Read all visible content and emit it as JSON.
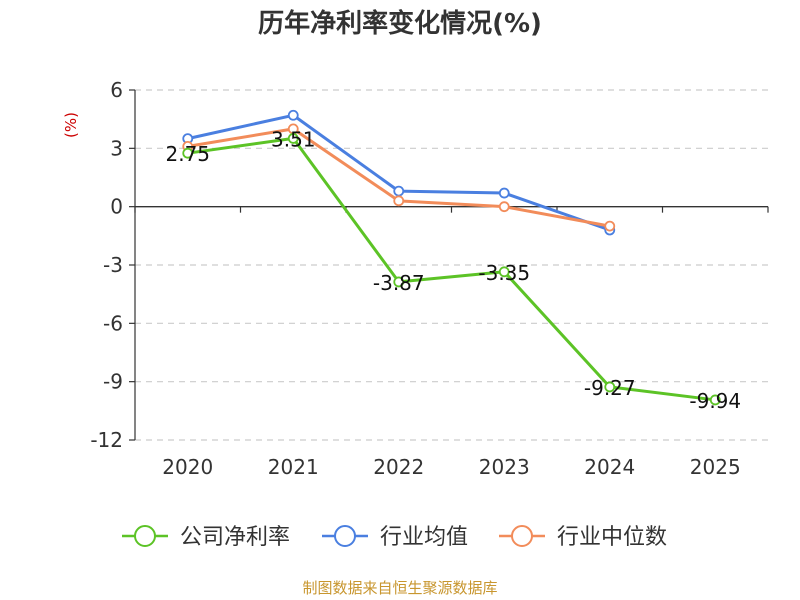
{
  "colors": {
    "company": "#5cc326",
    "industry_avg": "#4a7fe0",
    "industry_median": "#f28c5a",
    "ylabel": "#cc0000",
    "source": "#c8962e",
    "grid": "#cccccc",
    "axis": "#333333"
  },
  "chart_data": {
    "type": "line",
    "title": "历年净利率变化情况(%)",
    "ylabel": "(%)",
    "xlabel": "",
    "categories": [
      "2020",
      "2021",
      "2022",
      "2023",
      "2024",
      "2025"
    ],
    "ylim": [
      -12,
      6
    ],
    "yticks": [
      6,
      3,
      0,
      -3,
      -6,
      -9,
      -12
    ],
    "ytick_labels": [
      "6",
      "3",
      "0",
      "-3",
      "-6",
      "-9",
      "-12"
    ],
    "grid": "horizontal-dashed",
    "legend_position": "bottom",
    "series": [
      {
        "key": "company",
        "name": "公司净利率",
        "values": [
          2.75,
          3.51,
          -3.87,
          -3.35,
          -9.27,
          -9.94
        ],
        "labels": [
          "2.75",
          "3.51",
          "-3.87",
          "-3.35",
          "-9.27",
          "-9.94"
        ]
      },
      {
        "key": "industry_avg",
        "name": "行业均值",
        "values": [
          3.5,
          4.7,
          0.8,
          0.7,
          -1.2,
          null
        ]
      },
      {
        "key": "industry_median",
        "name": "行业中位数",
        "values": [
          3.1,
          4.0,
          0.3,
          0.0,
          -1.0,
          null
        ]
      }
    ]
  },
  "footer": {
    "source": "制图数据来自恒生聚源数据库"
  }
}
